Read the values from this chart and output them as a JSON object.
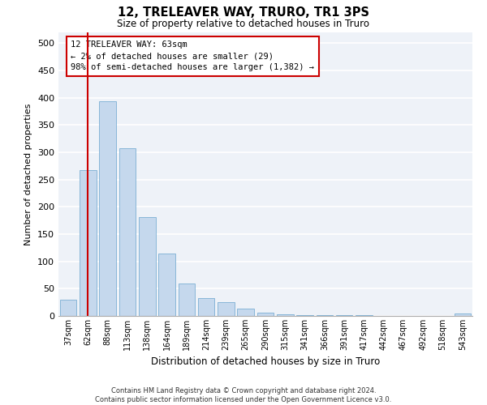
{
  "title": "12, TRELEAVER WAY, TRURO, TR1 3PS",
  "subtitle": "Size of property relative to detached houses in Truro",
  "xlabel": "Distribution of detached houses by size in Truro",
  "ylabel": "Number of detached properties",
  "bar_color": "#c5d8ed",
  "bar_edge_color": "#7bafd4",
  "background_color": "#eef2f8",
  "grid_color": "#ffffff",
  "annotation_line_color": "#cc0000",
  "annotation_box_color": "#cc0000",
  "categories": [
    "37sqm",
    "62sqm",
    "88sqm",
    "113sqm",
    "138sqm",
    "164sqm",
    "189sqm",
    "214sqm",
    "239sqm",
    "265sqm",
    "290sqm",
    "315sqm",
    "341sqm",
    "366sqm",
    "391sqm",
    "417sqm",
    "442sqm",
    "467sqm",
    "492sqm",
    "518sqm",
    "543sqm"
  ],
  "values": [
    30,
    267,
    393,
    308,
    181,
    114,
    59,
    33,
    26,
    14,
    6,
    3,
    1,
    1,
    1,
    1,
    0,
    0,
    0,
    0,
    4
  ],
  "ylim": [
    0,
    520
  ],
  "yticks": [
    0,
    50,
    100,
    150,
    200,
    250,
    300,
    350,
    400,
    450,
    500
  ],
  "property_line_x": 1,
  "annotation_line1": "12 TRELEAVER WAY: 63sqm",
  "annotation_line2": "← 2% of detached houses are smaller (29)",
  "annotation_line3": "98% of semi-detached houses are larger (1,382) →",
  "footer_line1": "Contains HM Land Registry data © Crown copyright and database right 2024.",
  "footer_line2": "Contains public sector information licensed under the Open Government Licence v3.0."
}
